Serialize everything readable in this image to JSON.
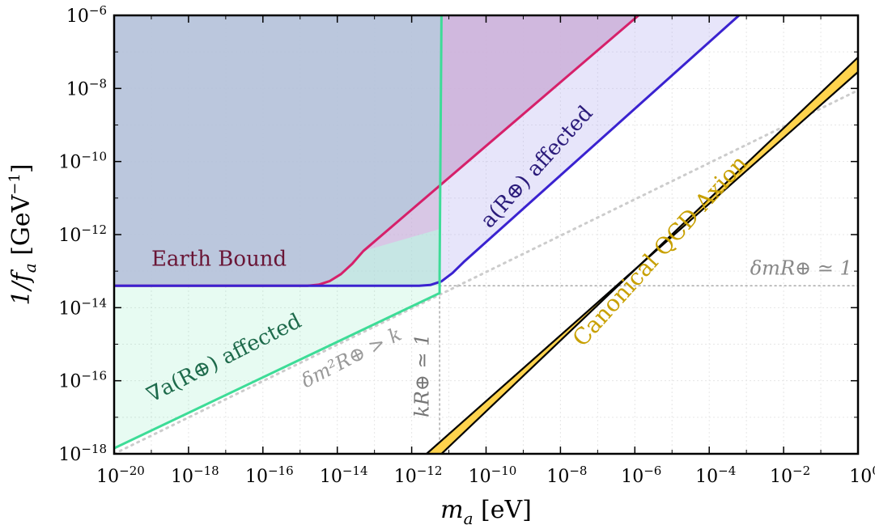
{
  "chart_data": {
    "type": "area",
    "xlabel": {
      "main": "m",
      "sub": "a",
      "unit": "[eV]"
    },
    "ylabel": {
      "main": "1/f",
      "sub": "a",
      "unit": "[GeV",
      "unit_exp": "−1",
      "unit_close": "]"
    },
    "xscale": "log",
    "yscale": "log",
    "xlim_log10": [
      -20,
      0
    ],
    "ylim_log10": [
      -18,
      -6
    ],
    "grid": true,
    "x_ticks": [
      {
        "base": "10",
        "exp": "−20",
        "log10": -20
      },
      {
        "base": "10",
        "exp": "−18",
        "log10": -18
      },
      {
        "base": "10",
        "exp": "−16",
        "log10": -16
      },
      {
        "base": "10",
        "exp": "−14",
        "log10": -14
      },
      {
        "base": "10",
        "exp": "−12",
        "log10": -12
      },
      {
        "base": "10",
        "exp": "−10",
        "log10": -10
      },
      {
        "base": "10",
        "exp": "−8",
        "log10": -8
      },
      {
        "base": "10",
        "exp": "−6",
        "log10": -6
      },
      {
        "base": "10",
        "exp": "−4",
        "log10": -4
      },
      {
        "base": "10",
        "exp": "−2",
        "log10": -2
      },
      {
        "base": "10",
        "exp": "0",
        "log10": 0
      }
    ],
    "y_ticks": [
      {
        "base": "10",
        "exp": "−6",
        "log10": -6
      },
      {
        "base": "10",
        "exp": "−8",
        "log10": -8
      },
      {
        "base": "10",
        "exp": "−10",
        "log10": -10
      },
      {
        "base": "10",
        "exp": "−12",
        "log10": -12
      },
      {
        "base": "10",
        "exp": "−14",
        "log10": -14
      },
      {
        "base": "10",
        "exp": "−16",
        "log10": -16
      },
      {
        "base": "10",
        "exp": "−18",
        "log10": -18
      }
    ],
    "regions": [
      {
        "key": "earth_bound",
        "fill": "#c9cad8",
        "opacity": 0.85,
        "boundary": [
          [
            -20,
            -13.4
          ],
          [
            -14.8,
            -13.4
          ],
          [
            -14.3,
            -13.3
          ],
          [
            -13.8,
            -13.0
          ],
          [
            -13.3,
            -12.45
          ],
          [
            -5.9,
            -6
          ]
        ],
        "close_to": "top-left"
      },
      {
        "key": "gradient_affected",
        "fill": "#3ddc97",
        "opacity": 0.12,
        "boundary": [
          [
            -20,
            -17.85
          ],
          [
            -11.25,
            -13.6
          ],
          [
            -11.25,
            -13.05
          ],
          [
            -11.2,
            -6
          ]
        ],
        "close_to": "top-left"
      },
      {
        "key": "a_affected",
        "fill": "#b5aef0",
        "opacity": 0.32,
        "boundary": [
          [
            -20,
            -13.4
          ],
          [
            -11.8,
            -13.4
          ],
          [
            -11.4,
            -13.35
          ],
          [
            -11.0,
            -13.15
          ],
          [
            -10.6,
            -12.75
          ],
          [
            -3.2,
            -6
          ]
        ],
        "close_to": "top-left"
      },
      {
        "key": "pink",
        "fill": "#d9a6d6",
        "opacity": 0.45,
        "boundary": [
          [
            -11.2,
            -6
          ],
          [
            -11.25,
            -11.85
          ],
          [
            -13.3,
            -12.45
          ],
          [
            -5.9,
            -6
          ]
        ],
        "closed": true
      },
      {
        "key": "cyan",
        "fill": "#b5ead8",
        "opacity": 0.5,
        "boundary": [
          [
            -14.8,
            -13.4
          ],
          [
            -11.25,
            -13.4
          ],
          [
            -11.25,
            -11.85
          ],
          [
            -13.3,
            -12.45
          ],
          [
            -13.8,
            -13.0
          ],
          [
            -14.3,
            -13.3
          ]
        ],
        "closed": true
      }
    ],
    "series": [
      {
        "key": "earth_bound_line",
        "color": "#d6206a",
        "width": 3,
        "points": [
          [
            -20,
            -13.4
          ],
          [
            -14.8,
            -13.4
          ],
          [
            -14.5,
            -13.37
          ],
          [
            -14.2,
            -13.27
          ],
          [
            -13.9,
            -13.08
          ],
          [
            -13.6,
            -12.8
          ],
          [
            -13.3,
            -12.45
          ],
          [
            -5.9,
            -6
          ]
        ]
      },
      {
        "key": "a_affected_line",
        "color": "#3a22d0",
        "width": 3,
        "points": [
          [
            -20,
            -13.4
          ],
          [
            -11.8,
            -13.4
          ],
          [
            -11.5,
            -13.38
          ],
          [
            -11.2,
            -13.28
          ],
          [
            -10.9,
            -13.05
          ],
          [
            -10.6,
            -12.75
          ],
          [
            -3.2,
            -6
          ]
        ]
      },
      {
        "key": "gradient_affected_line",
        "color": "#3ddc97",
        "width": 3,
        "points": [
          [
            -20,
            -17.85
          ],
          [
            -11.25,
            -13.6
          ],
          [
            -11.25,
            -13.05
          ],
          [
            -11.2,
            -6
          ]
        ]
      }
    ],
    "dotted_lines": [
      {
        "key": "dm2R_gt_k",
        "color": "#cccccc",
        "width": 3,
        "points": [
          [
            -20,
            -18.0
          ],
          [
            0,
            -8.05
          ]
        ]
      },
      {
        "key": "dmR_eq_1",
        "color": "#aaaaaa",
        "width": 1.5,
        "points": [
          [
            -11.25,
            -13.4
          ],
          [
            0,
            -13.4
          ]
        ]
      },
      {
        "key": "kR_eq_1",
        "color": "#aaaaaa",
        "width": 1.5,
        "points": [
          [
            -11.25,
            -18
          ],
          [
            -11.25,
            -13.4
          ]
        ]
      }
    ],
    "band": {
      "key": "qcd_axion",
      "fill": "#ffd34d",
      "edge": "#000000",
      "lower": [
        [
          -11.6,
          -18
        ],
        [
          0,
          -7.55
        ]
      ],
      "upper": [
        [
          -11.2,
          -18
        ],
        [
          0,
          -7.15
        ]
      ]
    },
    "annotations": [
      {
        "key": "earth_bound",
        "text": "Earth Bound",
        "color": "#6a1636",
        "size": 26,
        "at": [
          -19.0,
          -12.85
        ],
        "angle": 0,
        "italic": false
      },
      {
        "key": "a_affected",
        "text": "a(R⊕) affected",
        "color": "#2a1a7a",
        "size": 26,
        "at": [
          -9.9,
          -11.85
        ],
        "angle": -48,
        "italic": false
      },
      {
        "key": "grad_affected",
        "text": "∇a(R⊕) affected",
        "color": "#1d6a4b",
        "size": 26,
        "at": [
          -19.0,
          -16.6
        ],
        "angle": -27,
        "italic": false
      },
      {
        "key": "dm2R",
        "text": "δm²R⊕ > k",
        "color": "#999999",
        "size": 24,
        "at": [
          -14.85,
          -16.2
        ],
        "angle": -27,
        "italic": true
      },
      {
        "key": "kR",
        "text": "kR⊕ ≃ 1",
        "color": "#777777",
        "size": 24,
        "at": [
          -11.55,
          -17.0
        ],
        "angle": -90,
        "italic": true
      },
      {
        "key": "dmR",
        "text": "δmR⊕ ≃ 1",
        "color": "#888888",
        "size": 24,
        "at": [
          -2.9,
          -13.1
        ],
        "angle": 0,
        "italic": true
      },
      {
        "key": "qcd",
        "text": "Canonical QCD Axion",
        "color": "#c8a000",
        "size": 28,
        "at": [
          -7.4,
          -15.1
        ],
        "angle": -48,
        "italic": false
      }
    ]
  }
}
